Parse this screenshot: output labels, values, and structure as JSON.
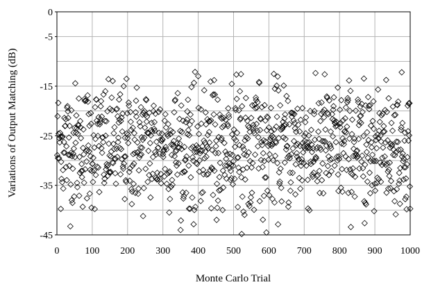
{
  "chart_data": {
    "type": "scatter",
    "title": "",
    "xlabel": "Monte Carlo Trial",
    "ylabel": "Variations of Output Matching (dB)",
    "xlim": [
      0,
      1000
    ],
    "ylim": [
      -45,
      0
    ],
    "x_ticks": [
      0,
      100,
      200,
      300,
      400,
      500,
      600,
      700,
      800,
      900,
      1000
    ],
    "y_ticks": [
      0,
      -5,
      -15,
      -25,
      -35,
      -45
    ],
    "y_tick_labels": [
      "0",
      "-5",
      "-15",
      "-25",
      "-35",
      "-45"
    ],
    "y_gridlines": [
      -5,
      -10,
      -15,
      -20,
      -25,
      -30,
      -35,
      -40
    ],
    "x_gridlines": [
      100,
      200,
      300,
      400,
      500,
      600,
      700,
      800,
      900
    ],
    "grid": true,
    "marker": "diamond-open",
    "marker_color": "#000000",
    "n_points": 1000,
    "y_range_observed": [
      -45,
      -12
    ],
    "y_center_approx": -27,
    "note_data": "1000 Monte Carlo trials; values spread roughly between -45 and -12 dB, densest between -35 and -20 dB"
  }
}
